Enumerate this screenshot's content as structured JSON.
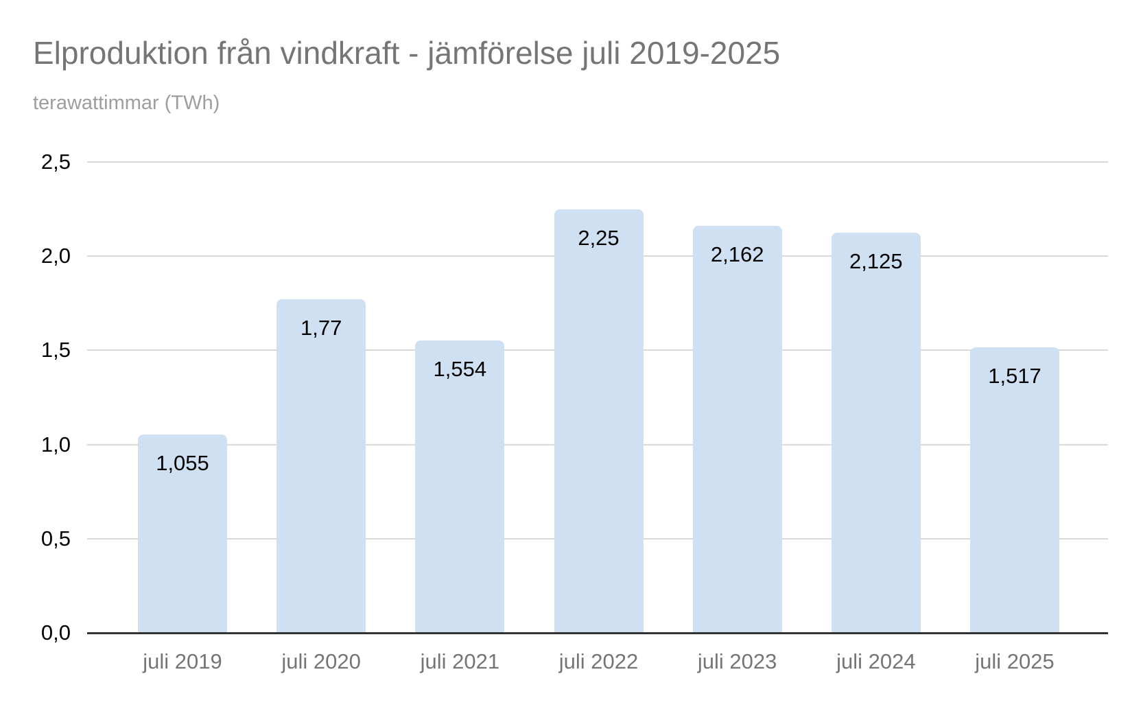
{
  "chart_data": {
    "type": "bar",
    "title": "Elproduktion från vindkraft - jämförelse juli 2019-2025",
    "subtitle": "terawattimmar (TWh)",
    "unit": "TWh",
    "categories": [
      "juli 2019",
      "juli 2020",
      "juli 2021",
      "juli 2022",
      "juli 2023",
      "juli 2024",
      "juli 2025"
    ],
    "values": [
      1.055,
      1.77,
      1.554,
      2.25,
      2.162,
      2.125,
      1.517
    ],
    "value_labels": [
      "1,055",
      "1,77",
      "1,554",
      "2,25",
      "2,162",
      "2,125",
      "1,517"
    ],
    "xlabel": "",
    "ylabel": "",
    "ylim": [
      0,
      2.5
    ],
    "grid": true,
    "legend": "none",
    "y_axis": {
      "ticks": [
        {
          "value": 0.0,
          "label": "0,0"
        },
        {
          "value": 0.5,
          "label": "0,5"
        },
        {
          "value": 1.0,
          "label": "1,0"
        },
        {
          "value": 1.5,
          "label": "1,5"
        },
        {
          "value": 2.0,
          "label": "2,0"
        },
        {
          "value": 2.5,
          "label": "2,5"
        }
      ]
    },
    "colors": {
      "background": "#ffffff",
      "bar_fill": "#cfe0f2",
      "gridline": "#d9d9d9",
      "axis_line": "#333333",
      "title": "#757575",
      "subtitle": "#9e9e9e",
      "x_tick": "#757575",
      "y_tick": "#000000",
      "value_label": "#000000"
    }
  }
}
